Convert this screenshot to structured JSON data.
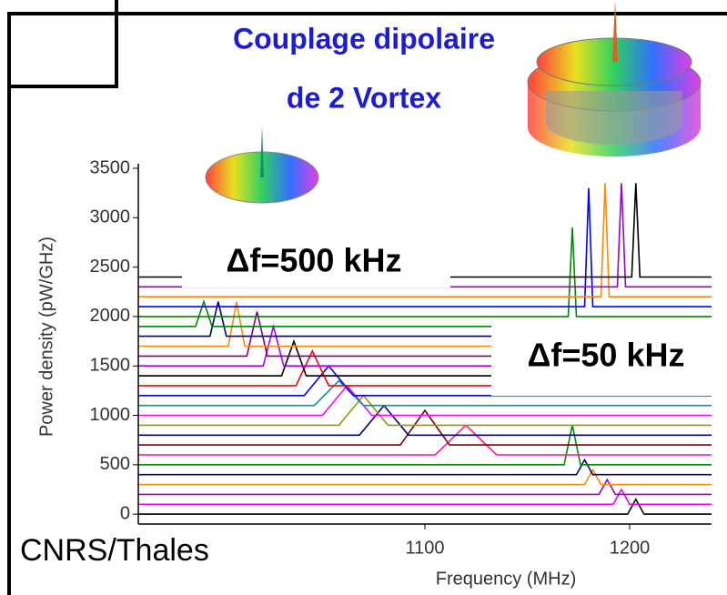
{
  "chart_data": {
    "type": "line",
    "annotations": [
      "Couplage dipolaire",
      "de 2 Vortex",
      "Δf=500 kHz",
      "Δf=50 kHz",
      "CNRS/Thales"
    ],
    "xlabel": "Frequency (MHz)",
    "ylabel": "Power density (pW/GHz)",
    "xlim": [
      960,
      1240
    ],
    "ylim": [
      -100,
      3500
    ],
    "xticks": [
      1100,
      1200
    ],
    "yticks": [
      0,
      500,
      1000,
      1500,
      2000,
      2500,
      3000,
      3500
    ],
    "series": [
      {
        "color": "#000000",
        "x": [
          960,
          1199,
          1203,
          1207,
          1240
        ],
        "values": [
          0,
          0,
          150,
          0,
          0
        ]
      },
      {
        "color": "#ee00ee",
        "x": [
          960,
          1192,
          1196,
          1200,
          1240
        ],
        "values": [
          100,
          100,
          250,
          100,
          100
        ]
      },
      {
        "color": "#9900cc",
        "x": [
          960,
          1185,
          1189,
          1193,
          1240
        ],
        "values": [
          200,
          200,
          350,
          200,
          200
        ]
      },
      {
        "color": "#ff8800",
        "x": [
          960,
          1178,
          1182,
          1186,
          1240
        ],
        "values": [
          300,
          300,
          450,
          300,
          300
        ]
      },
      {
        "color": "#000080",
        "x": [
          960,
          1174,
          1178,
          1182,
          1240
        ],
        "values": [
          400,
          400,
          550,
          400,
          400
        ]
      },
      {
        "color": "#008800",
        "x": [
          960,
          1168,
          1172,
          1176,
          1240
        ],
        "values": [
          500,
          500,
          900,
          500,
          500
        ]
      },
      {
        "color": "#ff1493",
        "x": [
          960,
          1105,
          1120,
          1135,
          1240
        ],
        "values": [
          600,
          600,
          900,
          600,
          600
        ]
      },
      {
        "color": "#800000",
        "x": [
          960,
          1088,
          1100,
          1112,
          1240
        ],
        "values": [
          700,
          700,
          1050,
          700,
          700
        ]
      },
      {
        "color": "#000080",
        "x": [
          960,
          1068,
          1080,
          1092,
          1240
        ],
        "values": [
          800,
          800,
          1100,
          800,
          800
        ]
      },
      {
        "color": "#999900",
        "x": [
          960,
          1058,
          1070,
          1082,
          1240
        ],
        "values": [
          900,
          900,
          1200,
          900,
          900
        ]
      },
      {
        "color": "#ff00ff",
        "x": [
          960,
          1050,
          1062,
          1074,
          1240
        ],
        "values": [
          1000,
          1000,
          1300,
          1000,
          1000
        ]
      },
      {
        "color": "#009999",
        "x": [
          960,
          1046,
          1058,
          1070,
          1240
        ],
        "values": [
          1100,
          1100,
          1350,
          1100,
          1100
        ]
      },
      {
        "color": "#0000ff",
        "x": [
          960,
          1041,
          1053,
          1065,
          1240
        ],
        "values": [
          1200,
          1200,
          1500,
          1200,
          1200
        ]
      },
      {
        "color": "#ff0000",
        "x": [
          960,
          1037,
          1045,
          1053,
          1240
        ],
        "values": [
          1300,
          1300,
          1650,
          1300,
          1300
        ]
      },
      {
        "color": "#000000",
        "x": [
          960,
          1030,
          1036,
          1042,
          1240
        ],
        "values": [
          1400,
          1400,
          1750,
          1400,
          1400
        ]
      },
      {
        "color": "#aa00ff",
        "x": [
          960,
          1021,
          1026,
          1031,
          1240
        ],
        "values": [
          1500,
          1500,
          1900,
          1500,
          1500
        ]
      },
      {
        "color": "#800080",
        "x": [
          960,
          1013,
          1018,
          1023,
          1240
        ],
        "values": [
          1600,
          1600,
          2050,
          1600,
          1600
        ]
      },
      {
        "color": "#ff8800",
        "x": [
          960,
          1004,
          1008,
          1012,
          1240
        ],
        "values": [
          1700,
          1700,
          2150,
          1700,
          1700
        ]
      },
      {
        "color": "#000080",
        "x": [
          960,
          995,
          999,
          1003,
          1240
        ],
        "values": [
          1800,
          1800,
          2150,
          1800,
          1800
        ]
      },
      {
        "color": "#008800",
        "x": [
          960,
          988,
          992,
          996,
          1240
        ],
        "values": [
          1900,
          1900,
          2150,
          1900,
          1900
        ]
      },
      {
        "color": "#008800",
        "x": [
          960,
          1170,
          1172,
          1174,
          1240
        ],
        "values": [
          2000,
          2000,
          2900,
          2000,
          2000
        ]
      },
      {
        "color": "#0000ff",
        "x": [
          960,
          1178,
          1180,
          1182,
          1240
        ],
        "values": [
          2100,
          2100,
          3300,
          2100,
          2100
        ]
      },
      {
        "color": "#ff8800",
        "x": [
          960,
          1186,
          1188,
          1190,
          1240
        ],
        "values": [
          2200,
          2200,
          3350,
          2200,
          2200
        ]
      },
      {
        "color": "#9900cc",
        "x": [
          960,
          1194,
          1196,
          1198,
          1240
        ],
        "values": [
          2300,
          2300,
          3350,
          2300,
          2300
        ]
      },
      {
        "color": "#000000",
        "x": [
          960,
          1201,
          1203,
          1205,
          1240
        ],
        "values": [
          2400,
          2400,
          3350,
          2400,
          2400
        ]
      }
    ]
  }
}
